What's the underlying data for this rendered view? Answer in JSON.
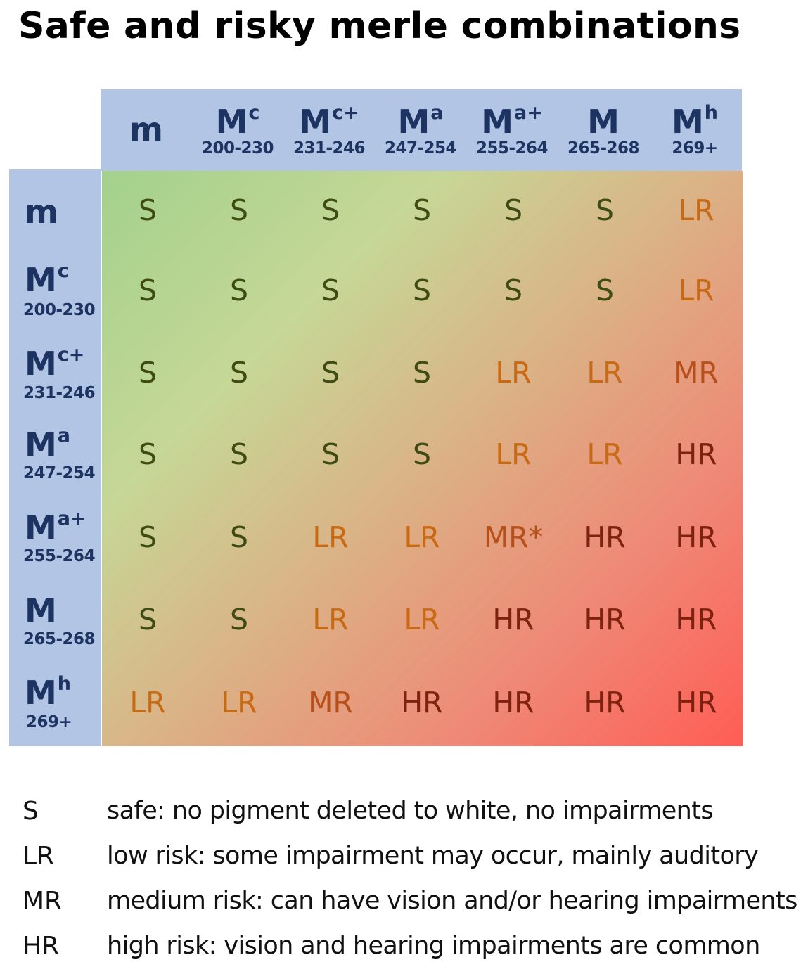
{
  "title": "Safe and risky merle combinations",
  "colors": {
    "header_bg": "#b3c5e5",
    "header_text": "#1d3361",
    "safe": "#3f4b14",
    "low_risk": "#c86a14",
    "medium_risk": "#b6501a",
    "high_risk": "#7e2210"
  },
  "columns": [
    {
      "base": "m",
      "sup": "",
      "range": ""
    },
    {
      "base": "M",
      "sup": "c",
      "range": "200-230"
    },
    {
      "base": "M",
      "sup": "c+",
      "range": "231-246"
    },
    {
      "base": "M",
      "sup": "a",
      "range": "247-254"
    },
    {
      "base": "M",
      "sup": "a+",
      "range": "255-264"
    },
    {
      "base": "M",
      "sup": "",
      "range": "265-268"
    },
    {
      "base": "M",
      "sup": "h",
      "range": "269+"
    }
  ],
  "rows": [
    {
      "base": "m",
      "sup": "",
      "range": ""
    },
    {
      "base": "M",
      "sup": "c",
      "range": "200-230"
    },
    {
      "base": "M",
      "sup": "c+",
      "range": "231-246"
    },
    {
      "base": "M",
      "sup": "a",
      "range": "247-254"
    },
    {
      "base": "M",
      "sup": "a+",
      "range": "255-264"
    },
    {
      "base": "M",
      "sup": "",
      "range": "265-268"
    },
    {
      "base": "M",
      "sup": "h",
      "range": "269+"
    }
  ],
  "cells": [
    [
      "S",
      "S",
      "S",
      "S",
      "S",
      "S",
      "LR"
    ],
    [
      "S",
      "S",
      "S",
      "S",
      "S",
      "S",
      "LR"
    ],
    [
      "S",
      "S",
      "S",
      "S",
      "LR",
      "LR",
      "MR"
    ],
    [
      "S",
      "S",
      "S",
      "S",
      "LR",
      "LR",
      "HR"
    ],
    [
      "S",
      "S",
      "LR",
      "LR",
      "MR*",
      "HR",
      "HR"
    ],
    [
      "S",
      "S",
      "LR",
      "LR",
      "HR",
      "HR",
      "HR"
    ],
    [
      "LR",
      "LR",
      "MR",
      "HR",
      "HR",
      "HR",
      "HR"
    ]
  ],
  "legend": [
    {
      "code": "S",
      "desc": "safe: no pigment deleted to white, no impairments"
    },
    {
      "code": "LR",
      "desc": "low risk: some impairment may occur, mainly auditory"
    },
    {
      "code": "MR",
      "desc": "medium risk: can have vision and/or hearing impairments"
    },
    {
      "code": "HR",
      "desc": "high risk: vision and hearing impairments are common"
    }
  ]
}
